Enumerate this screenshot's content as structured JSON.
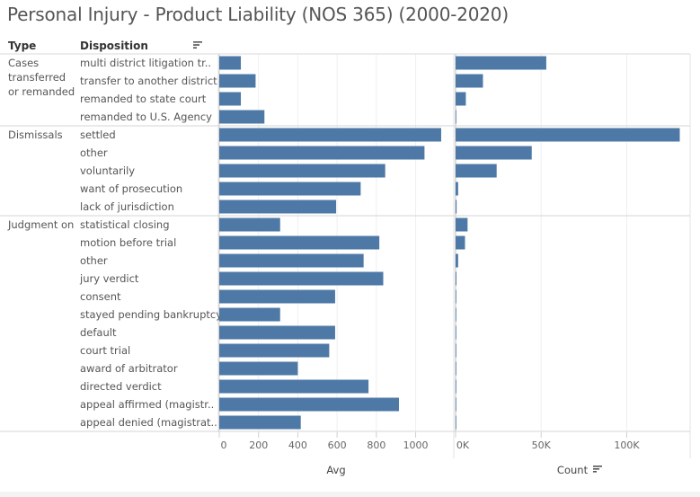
{
  "title": "Personal Injury - Product Liability (NOS 365) (2000-2020)",
  "headers": {
    "type": "Type",
    "disposition": "Disposition"
  },
  "chart_data": {
    "type": "bar",
    "orientation": "horizontal",
    "groups": [
      {
        "type_lines": [
          "Cases",
          "transferred",
          "or remanded"
        ],
        "items": [
          {
            "label": "multi district litigation tr..",
            "avg": 110,
            "count": 53000
          },
          {
            "label": "transfer to another district",
            "avg": 185,
            "count": 16000
          },
          {
            "label": "remanded to state court",
            "avg": 110,
            "count": 6000
          },
          {
            "label": "remanded to U.S. Agency",
            "avg": 230,
            "count": 0
          }
        ]
      },
      {
        "type_lines": [
          "Dismissals"
        ],
        "items": [
          {
            "label": "settled",
            "avg": 1130,
            "count": 131000
          },
          {
            "label": "other",
            "avg": 1045,
            "count": 44500
          },
          {
            "label": "voluntarily",
            "avg": 845,
            "count": 24000
          },
          {
            "label": "want of prosecution",
            "avg": 720,
            "count": 1500
          },
          {
            "label": "lack of jurisdiction",
            "avg": 595,
            "count": 600
          }
        ]
      },
      {
        "type_lines": [
          "Judgment on"
        ],
        "items": [
          {
            "label": "statistical closing",
            "avg": 310,
            "count": 7000
          },
          {
            "label": "motion before trial",
            "avg": 815,
            "count": 5500
          },
          {
            "label": "other",
            "avg": 735,
            "count": 1500
          },
          {
            "label": "jury verdict",
            "avg": 835,
            "count": 500
          },
          {
            "label": "consent",
            "avg": 590,
            "count": 100
          },
          {
            "label": "stayed pending bankruptcy",
            "avg": 310,
            "count": 50
          },
          {
            "label": "default",
            "avg": 590,
            "count": 50
          },
          {
            "label": "court trial",
            "avg": 560,
            "count": 50
          },
          {
            "label": "award of arbitrator",
            "avg": 400,
            "count": 20
          },
          {
            "label": "directed verdict",
            "avg": 760,
            "count": 20
          },
          {
            "label": "appeal affirmed (magistr..",
            "avg": 915,
            "count": 10
          },
          {
            "label": "appeal denied (magistrat..",
            "avg": 415,
            "count": 10
          }
        ]
      }
    ],
    "avg_axis": {
      "title": "Avg",
      "ticks": [
        0,
        200,
        400,
        600,
        800,
        1000
      ],
      "tick_labels": [
        "0",
        "200",
        "400",
        "600",
        "800",
        "1000"
      ],
      "min": 0,
      "max": 1185
    },
    "count_axis": {
      "title": "Count",
      "ticks": [
        0,
        50000,
        100000
      ],
      "tick_labels": [
        "0K",
        "50K",
        "100K"
      ],
      "min": 0,
      "max": 136000
    },
    "bar_color": "#4e79a7",
    "grid": true
  }
}
